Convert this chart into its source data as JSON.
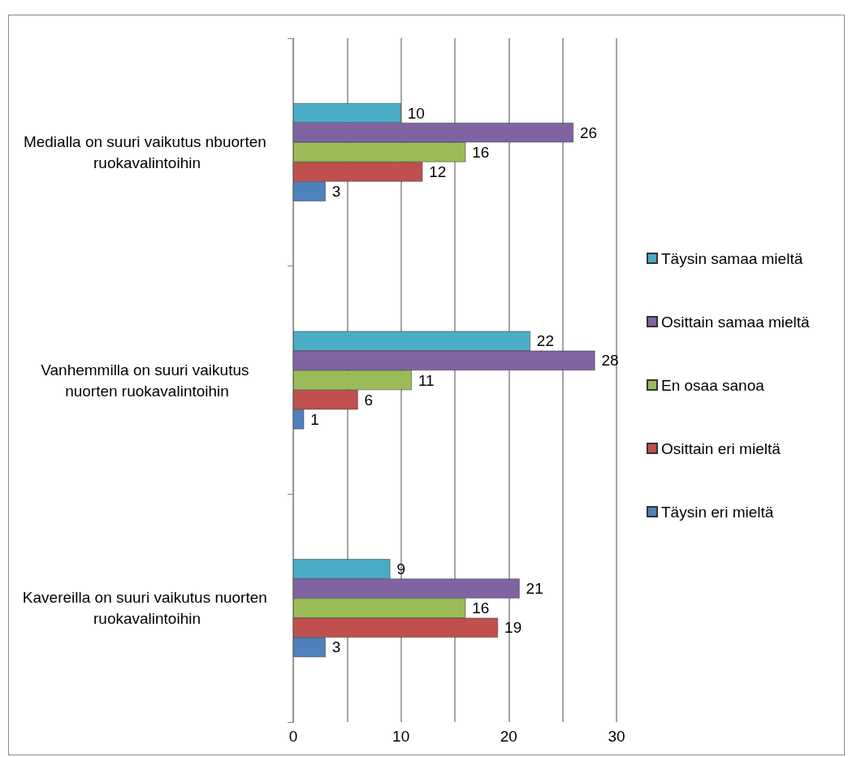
{
  "chart_data": {
    "type": "bar",
    "orientation": "horizontal",
    "categories": [
      "Medialla on suuri vaikutus nbuorten ruokavalintoihin",
      "Vanhemmilla on suuri vaikutus nuorten ruokavalintoihin",
      "Kavereilla on suuri vaikutus nuorten ruokavalintoihin"
    ],
    "series": [
      {
        "name": "Täysin samaa mieltä",
        "color": "#4bacc6",
        "values": [
          10,
          22,
          9
        ]
      },
      {
        "name": "Osittain samaa mieltä",
        "color": "#8064a2",
        "values": [
          26,
          28,
          21
        ]
      },
      {
        "name": "En osaa sanoa",
        "color": "#9bbb59",
        "values": [
          16,
          11,
          16
        ]
      },
      {
        "name": "Osittain eri mieltä",
        "color": "#c0504d",
        "values": [
          12,
          6,
          19
        ]
      },
      {
        "name": "Täysin eri mieltä",
        "color": "#4f81bd",
        "values": [
          3,
          1,
          3
        ]
      }
    ],
    "xlim": [
      0,
      30
    ],
    "xticks": [
      0,
      10,
      20,
      30
    ],
    "grid": "x",
    "legend": "right",
    "data_labels": true
  }
}
